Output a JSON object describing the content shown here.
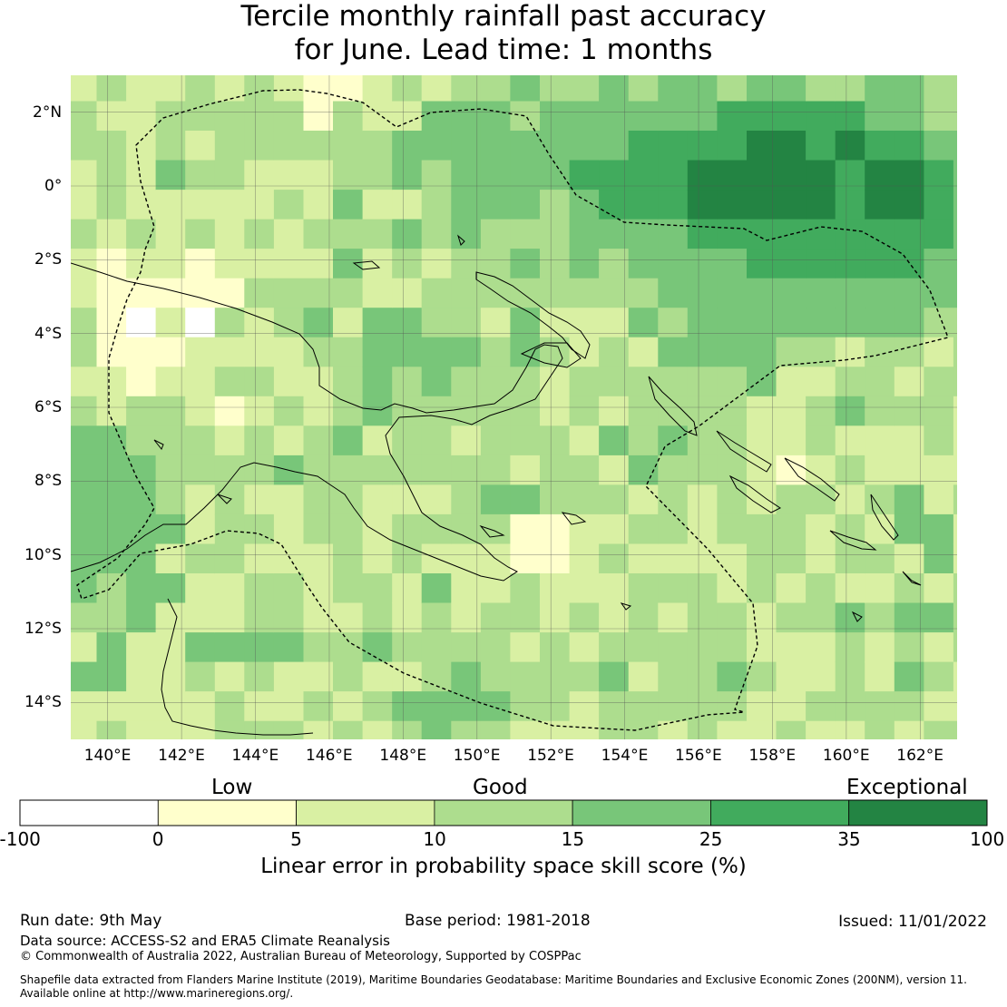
{
  "title": {
    "line1": "Tercile monthly rainfall past accuracy",
    "line2": "for June. Lead time: 1 months"
  },
  "map": {
    "lon_range": [
      139,
      163
    ],
    "lat_range": [
      -15,
      3
    ],
    "lon_ticks": [
      {
        "value": 140,
        "label": "140°E"
      },
      {
        "value": 142,
        "label": "142°E"
      },
      {
        "value": 144,
        "label": "144°E"
      },
      {
        "value": 146,
        "label": "146°E"
      },
      {
        "value": 148,
        "label": "148°E"
      },
      {
        "value": 150,
        "label": "150°E"
      },
      {
        "value": 152,
        "label": "152°E"
      },
      {
        "value": 154,
        "label": "154°E"
      },
      {
        "value": 156,
        "label": "156°E"
      },
      {
        "value": 158,
        "label": "158°E"
      },
      {
        "value": 160,
        "label": "160°E"
      },
      {
        "value": 162,
        "label": "162°E"
      }
    ],
    "lat_ticks": [
      {
        "value": 2,
        "label": "2°N"
      },
      {
        "value": 0,
        "label": "0°"
      },
      {
        "value": -2,
        "label": "2°S"
      },
      {
        "value": -4,
        "label": "4°S"
      },
      {
        "value": -6,
        "label": "6°S"
      },
      {
        "value": -8,
        "label": "8°S"
      },
      {
        "value": -10,
        "label": "10°S"
      },
      {
        "value": -12,
        "label": "12°S"
      },
      {
        "value": -14,
        "label": "14°S"
      }
    ],
    "grid": true,
    "grid_resolution_deg": 0.8
  },
  "colorbar": {
    "categories": [
      "Low",
      "Good",
      "Exceptional"
    ],
    "ticks": [
      "-100",
      "0",
      "5",
      "10",
      "15",
      "25",
      "35",
      "100"
    ],
    "bins": [
      {
        "from": -100,
        "to": 0,
        "color": "#ffffff"
      },
      {
        "from": 0,
        "to": 5,
        "color": "#ffffcc"
      },
      {
        "from": 5,
        "to": 10,
        "color": "#d9f0a3"
      },
      {
        "from": 10,
        "to": 15,
        "color": "#addd8e"
      },
      {
        "from": 15,
        "to": 25,
        "color": "#78c679"
      },
      {
        "from": 25,
        "to": 35,
        "color": "#41ab5d"
      },
      {
        "from": 35,
        "to": 100,
        "color": "#238443"
      }
    ],
    "caption": "Linear error in probability space skill score (%)"
  },
  "footer": {
    "run_date": "Run date: 9th May",
    "base_period": "Base period: 1981-2018",
    "issued": "Issued: 11/01/2022",
    "data_source": "Data source: ACCESS-S2 and ERA5 Climate Reanalysis",
    "copyright": "© Commonwealth of Australia 2022, Australian Bureau of Meteorology, Supported by COSPPac",
    "shapefile_line1": "Shapefile data extracted from Flanders Marine Institute (2019), Maritime Boundaries Geodatabase: Maritime Boundaries and Exclusive Economic Zones (200NM), version 11.",
    "shapefile_line2": "Available online at http://www.marineregions.org/."
  }
}
